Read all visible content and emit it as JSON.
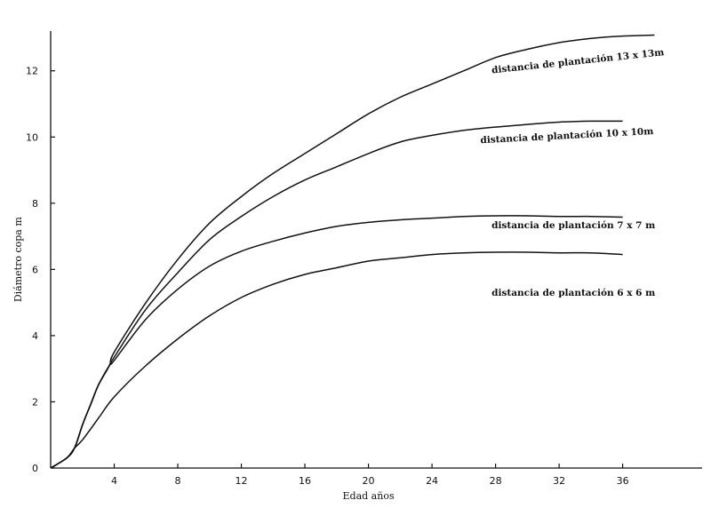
{
  "chart_data": {
    "type": "line",
    "xlabel": "Edad años",
    "ylabel": "Diámetro copa m",
    "xlim": [
      0,
      41
    ],
    "ylim": [
      0,
      13.2
    ],
    "x_ticks": [
      4,
      8,
      12,
      16,
      20,
      24,
      28,
      32,
      36
    ],
    "y_ticks": [
      0,
      2,
      4,
      6,
      8,
      10,
      12
    ],
    "grid": false,
    "series": [
      {
        "name": "distancia de plantación 13 x 13m",
        "label_anchor": {
          "x": 33.2,
          "y": 12.2,
          "angle": -6
        },
        "points": [
          [
            0,
            0
          ],
          [
            1,
            0.3
          ],
          [
            1.5,
            0.6
          ],
          [
            2,
            1.3
          ],
          [
            2.5,
            1.9
          ],
          [
            3,
            2.5
          ],
          [
            3.7,
            3.1
          ],
          [
            4,
            3.5
          ],
          [
            6,
            5.0
          ],
          [
            8,
            6.3
          ],
          [
            10,
            7.4
          ],
          [
            12,
            8.2
          ],
          [
            14,
            8.9
          ],
          [
            16,
            9.5
          ],
          [
            18,
            10.1
          ],
          [
            20,
            10.7
          ],
          [
            22,
            11.2
          ],
          [
            24,
            11.6
          ],
          [
            26,
            12.0
          ],
          [
            28,
            12.4
          ],
          [
            30,
            12.65
          ],
          [
            32,
            12.85
          ],
          [
            34,
            12.98
          ],
          [
            36,
            13.05
          ],
          [
            38,
            13.08
          ]
        ]
      },
      {
        "name": "distancia de plantación 10 x 10m",
        "label_anchor": {
          "x": 32.5,
          "y": 9.95,
          "angle": -3
        },
        "points": [
          [
            0,
            0
          ],
          [
            1,
            0.3
          ],
          [
            1.5,
            0.6
          ],
          [
            2,
            1.3
          ],
          [
            2.5,
            1.9
          ],
          [
            3,
            2.5
          ],
          [
            3.7,
            3.1
          ],
          [
            4,
            3.35
          ],
          [
            6,
            4.8
          ],
          [
            8,
            5.9
          ],
          [
            10,
            6.9
          ],
          [
            12,
            7.6
          ],
          [
            14,
            8.2
          ],
          [
            16,
            8.7
          ],
          [
            18,
            9.1
          ],
          [
            20,
            9.5
          ],
          [
            22,
            9.85
          ],
          [
            24,
            10.05
          ],
          [
            26,
            10.2
          ],
          [
            28,
            10.3
          ],
          [
            30,
            10.38
          ],
          [
            32,
            10.45
          ],
          [
            34,
            10.48
          ],
          [
            36,
            10.48
          ]
        ]
      },
      {
        "name": "distancia de plantación 7 x 7 m",
        "label_anchor": {
          "x": 32.9,
          "y": 7.25,
          "angle": 0
        },
        "points": [
          [
            0,
            0
          ],
          [
            1,
            0.3
          ],
          [
            1.5,
            0.6
          ],
          [
            2,
            1.3
          ],
          [
            2.5,
            1.9
          ],
          [
            3,
            2.5
          ],
          [
            3.7,
            3.1
          ],
          [
            4,
            3.25
          ],
          [
            6,
            4.5
          ],
          [
            8,
            5.4
          ],
          [
            10,
            6.1
          ],
          [
            12,
            6.55
          ],
          [
            14,
            6.85
          ],
          [
            16,
            7.1
          ],
          [
            18,
            7.3
          ],
          [
            20,
            7.42
          ],
          [
            22,
            7.5
          ],
          [
            24,
            7.55
          ],
          [
            26,
            7.6
          ],
          [
            28,
            7.62
          ],
          [
            30,
            7.62
          ],
          [
            32,
            7.6
          ],
          [
            34,
            7.6
          ],
          [
            36,
            7.58
          ]
        ]
      },
      {
        "name": "distancia de plantación 6 x 6 m",
        "label_anchor": {
          "x": 32.9,
          "y": 5.2,
          "angle": 0
        },
        "points": [
          [
            0,
            0
          ],
          [
            1,
            0.3
          ],
          [
            1.5,
            0.6
          ],
          [
            2,
            0.85
          ],
          [
            3,
            1.5
          ],
          [
            4,
            2.15
          ],
          [
            6,
            3.1
          ],
          [
            8,
            3.9
          ],
          [
            10,
            4.6
          ],
          [
            12,
            5.15
          ],
          [
            14,
            5.55
          ],
          [
            16,
            5.85
          ],
          [
            18,
            6.05
          ],
          [
            20,
            6.25
          ],
          [
            22,
            6.35
          ],
          [
            24,
            6.45
          ],
          [
            26,
            6.5
          ],
          [
            28,
            6.52
          ],
          [
            30,
            6.52
          ],
          [
            32,
            6.5
          ],
          [
            34,
            6.5
          ],
          [
            36,
            6.45
          ]
        ]
      }
    ]
  }
}
